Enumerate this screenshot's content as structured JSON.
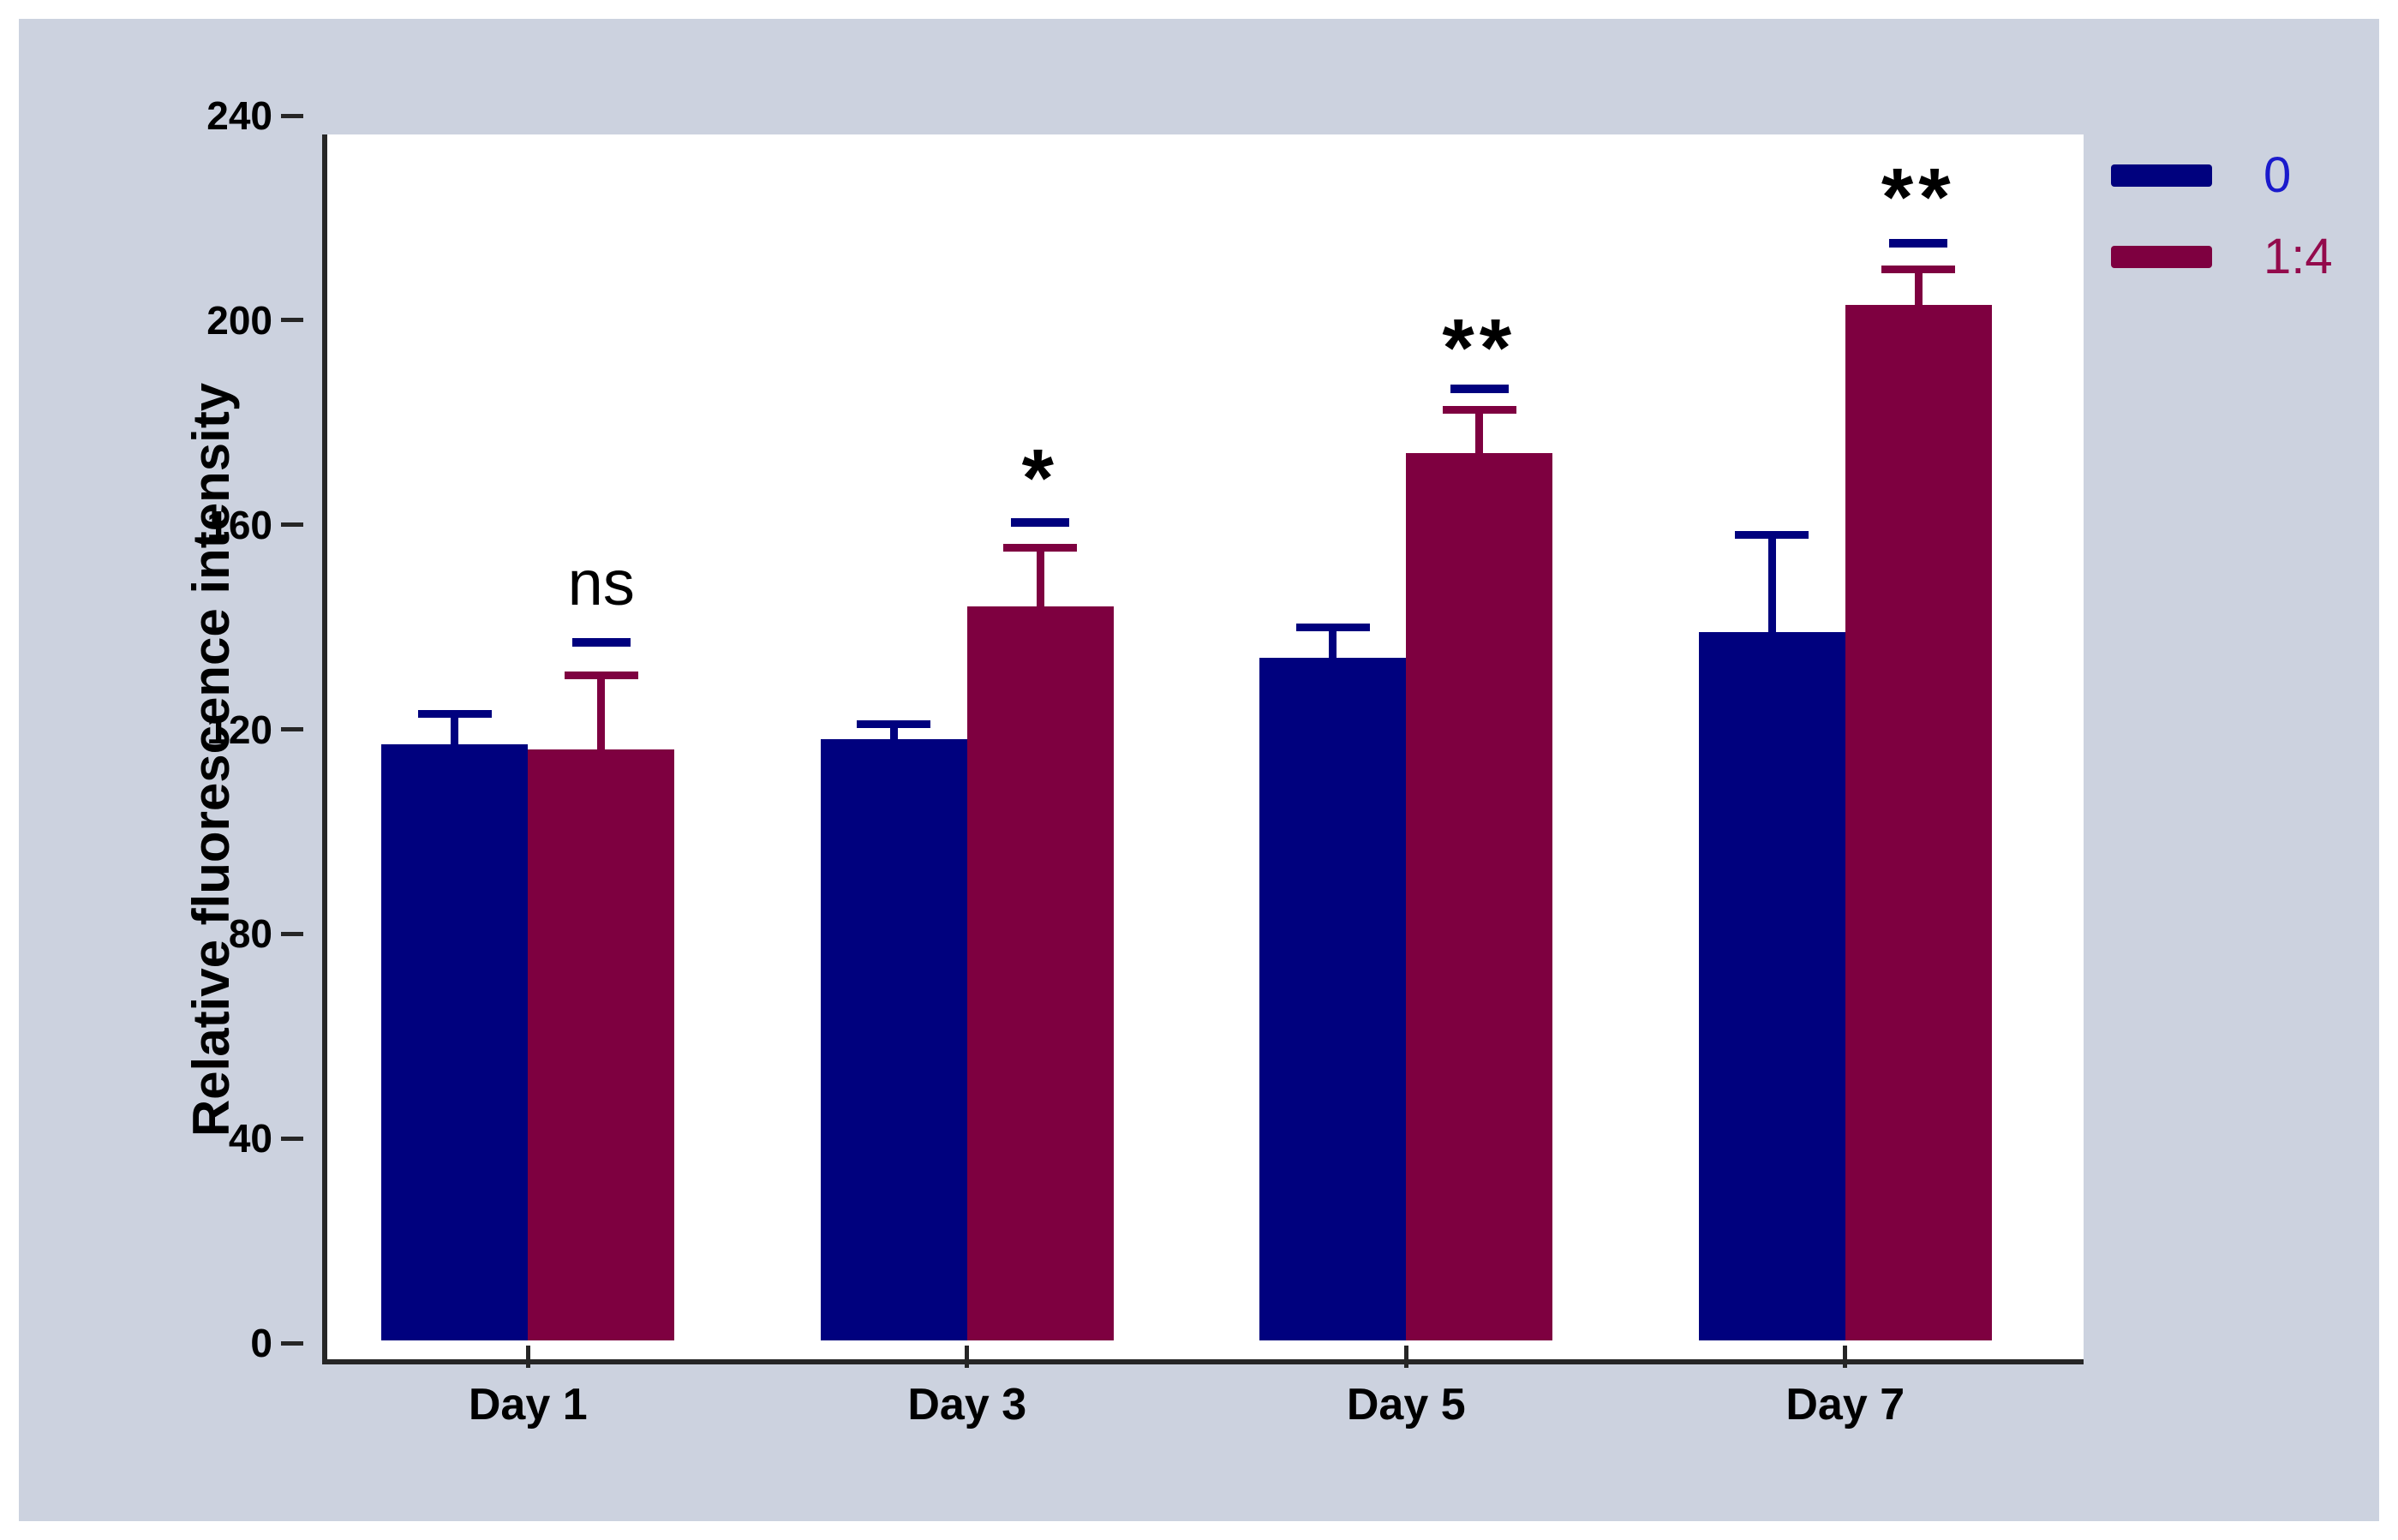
{
  "chart_data": {
    "type": "bar",
    "categories": [
      "Day 1",
      "Day 3",
      "Day 5",
      "Day 7"
    ],
    "series": [
      {
        "name": "0",
        "color": "#00017e",
        "values": [
          117,
          118,
          134,
          139
        ],
        "error_up": [
          6,
          3,
          6,
          19
        ]
      },
      {
        "name": "1:4",
        "color": "#7e0040",
        "values": [
          116,
          144,
          174,
          203
        ],
        "error_up": [
          14.5,
          11.5,
          8.5,
          7
        ]
      }
    ],
    "significance": [
      {
        "label": "ns",
        "line_y": 137,
        "text_y": 148
      },
      {
        "label": "*",
        "line_y": 160.5,
        "text_y": 172
      },
      {
        "label": "**",
        "line_y": 186.5,
        "text_y": 197.5
      },
      {
        "label": "**",
        "line_y": 215,
        "text_y": 227
      }
    ],
    "significance_line_color": "#00017e",
    "ylabel": "Relative fluorescence intensity",
    "xlabel": "",
    "ylim": [
      0,
      240
    ],
    "yticks": [
      0,
      40,
      80,
      120,
      160,
      200,
      240
    ],
    "grid": false,
    "legend_position": "outside-top-right",
    "error_bar_style": "upper-cap-only"
  },
  "legend": {
    "items": [
      {
        "label": "0",
        "swatch_color": "#00017e",
        "label_color": "#1a1acc"
      },
      {
        "label": "1:4",
        "swatch_color": "#7e0040",
        "label_color": "#930a4c"
      }
    ]
  },
  "style": {
    "page_bg": "#ffffff",
    "panel_bg": "#ccd2df",
    "plot_bg": "#ffffff",
    "axis_color": "#262626",
    "text_color": "#000000"
  }
}
